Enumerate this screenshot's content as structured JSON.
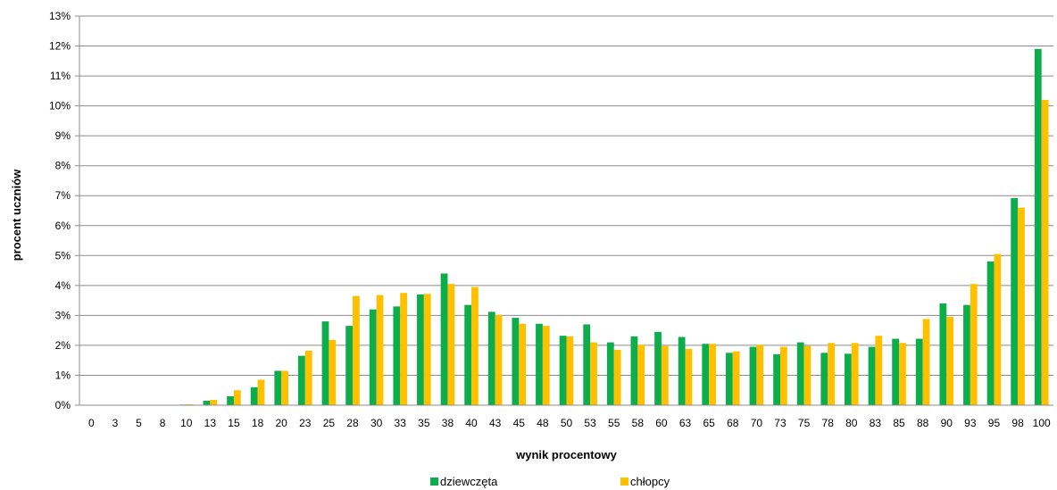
{
  "chart_data": {
    "type": "bar",
    "xlabel": "wynik procentowy",
    "ylabel": "procent  uczniów",
    "ylim": [
      0,
      13
    ],
    "yticks": [
      "0%",
      "1%",
      "2%",
      "3%",
      "4%",
      "5%",
      "6%",
      "7%",
      "8%",
      "9%",
      "10%",
      "11%",
      "12%",
      "13%"
    ],
    "grid": true,
    "legend_position": "bottom",
    "categories": [
      "0",
      "3",
      "5",
      "8",
      "10",
      "13",
      "15",
      "18",
      "20",
      "23",
      "25",
      "28",
      "30",
      "33",
      "35",
      "38",
      "40",
      "43",
      "45",
      "48",
      "50",
      "53",
      "55",
      "58",
      "60",
      "63",
      "65",
      "68",
      "70",
      "73",
      "75",
      "78",
      "80",
      "83",
      "85",
      "88",
      "90",
      "93",
      "95",
      "98",
      "100"
    ],
    "series": [
      {
        "name": "dziewczęta",
        "color": "#0ead4c",
        "values": [
          0,
          0,
          0,
          0,
          0.02,
          0.15,
          0.3,
          0.6,
          1.15,
          1.65,
          2.8,
          2.65,
          3.2,
          3.3,
          3.7,
          4.4,
          3.35,
          3.12,
          2.92,
          2.72,
          2.32,
          2.7,
          2.1,
          2.3,
          2.45,
          2.28,
          2.05,
          1.75,
          1.95,
          1.7,
          2.1,
          1.75,
          1.72,
          1.95,
          2.22,
          2.22,
          3.4,
          3.35,
          4.8,
          6.92,
          11.9
        ]
      },
      {
        "name": "chłopcy",
        "color": "#ffc000",
        "values": [
          0,
          0,
          0,
          0,
          0.03,
          0.18,
          0.5,
          0.85,
          1.15,
          1.82,
          2.18,
          3.65,
          3.68,
          3.75,
          3.72,
          4.05,
          3.95,
          3.02,
          2.72,
          2.65,
          2.3,
          2.1,
          1.85,
          2.02,
          1.98,
          1.88,
          2.05,
          1.8,
          2.02,
          1.95,
          1.98,
          2.08,
          2.08,
          2.32,
          2.08,
          2.88,
          2.95,
          4.05,
          5.05,
          6.6,
          10.2
        ]
      }
    ]
  }
}
